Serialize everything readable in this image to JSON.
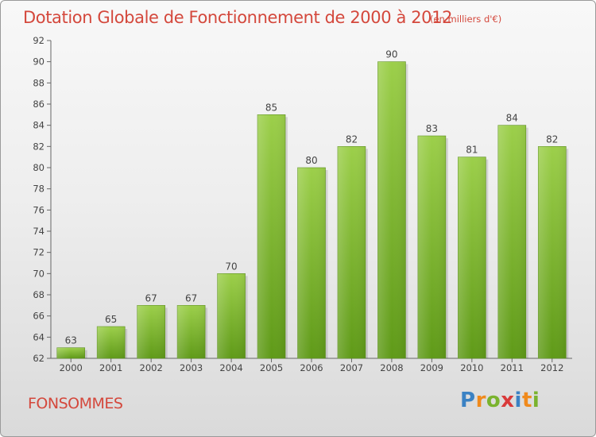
{
  "header": {
    "title": "Dotation Globale de Fonctionnement de 2000 à 2012",
    "unit": "(en milliers d'€)"
  },
  "footer": {
    "commune": "FONSOMMES",
    "logo_text": "Proxiti"
  },
  "colors": {
    "title": "#d4483c",
    "bar_top": "#9ccf4a",
    "bar_bottom": "#5f9a18",
    "axis": "#555555",
    "grid": "#cccccc"
  },
  "chart_data": {
    "type": "bar",
    "title": "Dotation Globale de Fonctionnement de 2000 à 2012",
    "subtitle": "(en milliers d'€)",
    "xlabel": "",
    "ylabel": "",
    "categories": [
      "2000",
      "2001",
      "2002",
      "2003",
      "2004",
      "2005",
      "2006",
      "2007",
      "2008",
      "2009",
      "2010",
      "2011",
      "2012"
    ],
    "values": [
      63,
      65,
      67,
      67,
      70,
      85,
      80,
      82,
      90,
      83,
      81,
      84,
      82
    ],
    "ylim": [
      62,
      92
    ],
    "yticks": [
      62,
      64,
      66,
      68,
      70,
      72,
      74,
      76,
      78,
      80,
      82,
      84,
      86,
      88,
      90,
      92
    ],
    "grid": false,
    "data_labels": true
  }
}
